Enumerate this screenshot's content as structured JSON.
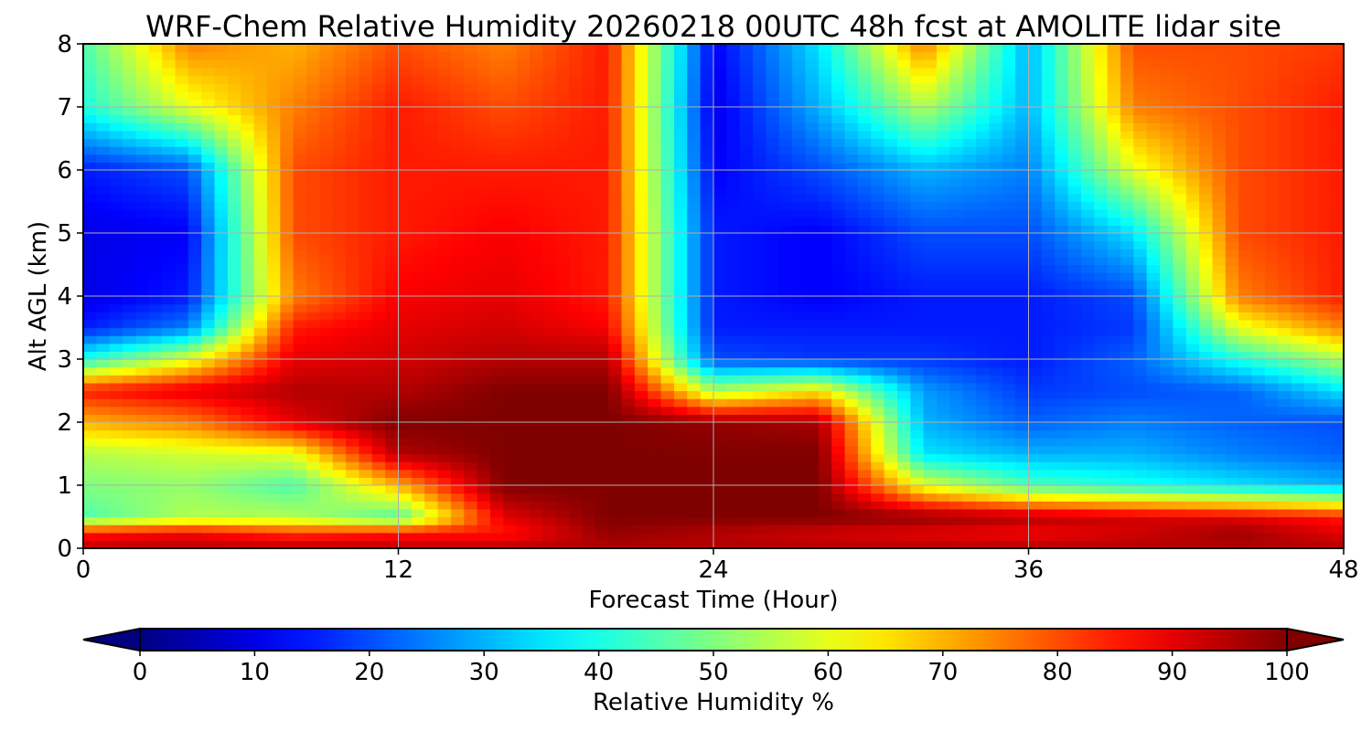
{
  "chart_data": {
    "type": "heatmap",
    "title": "WRF-Chem Relative Humidity 20260218 00UTC 48h fcst at AMOLITE lidar site",
    "xlabel": "Forecast Time (Hour)",
    "ylabel": "Alt AGL (km)",
    "xlim": [
      0,
      48
    ],
    "ylim": [
      0,
      8
    ],
    "x_ticks": [
      "0",
      "12",
      "24",
      "36",
      "48"
    ],
    "y_ticks": [
      "0",
      "1",
      "2",
      "3",
      "4",
      "5",
      "6",
      "7",
      "8"
    ],
    "grid": true,
    "colormap": "jet",
    "colorbar": {
      "label": "Relative Humidity %",
      "range": [
        0,
        100
      ],
      "ticks": [
        "0",
        "10",
        "20",
        "30",
        "40",
        "50",
        "60",
        "70",
        "80",
        "90",
        "100"
      ],
      "extend": "both",
      "placement": "bottom"
    },
    "x": [
      0,
      4,
      8,
      12,
      16,
      20,
      24,
      28,
      32,
      36,
      40,
      44,
      48
    ],
    "y": [
      0,
      0.25,
      0.5,
      1,
      1.5,
      2,
      2.5,
      3,
      3.5,
      4,
      5,
      6,
      7,
      8
    ],
    "z": [
      [
        95,
        95,
        95,
        95,
        95,
        95,
        95,
        95,
        95,
        95,
        95,
        95,
        95
      ],
      [
        85,
        88,
        82,
        85,
        85,
        98,
        95,
        92,
        90,
        88,
        92,
        97,
        90
      ],
      [
        45,
        55,
        55,
        45,
        90,
        100,
        100,
        100,
        98,
        95,
        92,
        90,
        85
      ],
      [
        50,
        52,
        45,
        70,
        100,
        100,
        100,
        100,
        60,
        45,
        40,
        35,
        30
      ],
      [
        55,
        58,
        60,
        95,
        100,
        100,
        100,
        100,
        35,
        30,
        30,
        25,
        22
      ],
      [
        70,
        75,
        90,
        100,
        100,
        100,
        98,
        96,
        30,
        22,
        25,
        22,
        20
      ],
      [
        85,
        90,
        95,
        95,
        100,
        100,
        55,
        65,
        28,
        18,
        20,
        22,
        35
      ],
      [
        40,
        60,
        90,
        92,
        95,
        95,
        20,
        18,
        18,
        15,
        22,
        40,
        55
      ],
      [
        15,
        25,
        85,
        90,
        92,
        88,
        15,
        15,
        15,
        15,
        18,
        60,
        75
      ],
      [
        10,
        15,
        75,
        88,
        90,
        85,
        15,
        12,
        15,
        15,
        20,
        75,
        85
      ],
      [
        10,
        12,
        80,
        85,
        88,
        85,
        15,
        12,
        20,
        20,
        35,
        80,
        85
      ],
      [
        15,
        20,
        80,
        85,
        85,
        85,
        12,
        20,
        30,
        25,
        60,
        80,
        85
      ],
      [
        40,
        60,
        75,
        85,
        80,
        85,
        10,
        30,
        55,
        30,
        75,
        80,
        85
      ],
      [
        45,
        75,
        70,
        80,
        75,
        85,
        12,
        35,
        75,
        30,
        80,
        80,
        82
      ]
    ]
  }
}
